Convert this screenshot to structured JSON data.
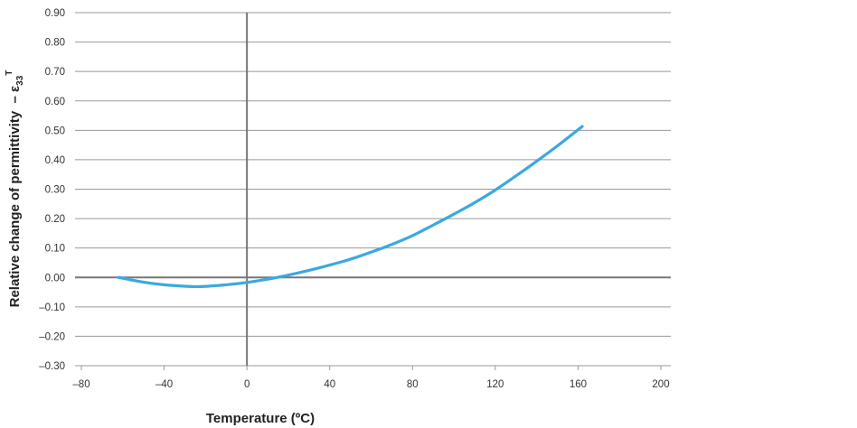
{
  "chart_data": {
    "type": "line",
    "xlabel": "Temperature (ºC)",
    "ylabel": {
      "text": "Relative change of permittivity  – ε",
      "subscript": "33",
      "superscript": "T"
    },
    "xlim": [
      -80,
      200
    ],
    "ylim": [
      -0.3,
      0.9
    ],
    "x_ticks": [
      -80,
      -40,
      0,
      40,
      80,
      120,
      160,
      200
    ],
    "x_tick_labels": [
      "–80",
      "–40",
      "0",
      "40",
      "80",
      "120",
      "160",
      "200"
    ],
    "y_ticks": [
      0.9,
      0.8,
      0.7,
      0.6,
      0.5,
      0.4,
      0.3,
      0.2,
      0.1,
      0.0,
      -0.1,
      -0.2,
      -0.3
    ],
    "y_tick_labels": [
      "0.90",
      "0.80",
      "0.70",
      "0.60",
      "0.50",
      "0.40",
      "0.30",
      "0.20",
      "0.10",
      "0.00",
      "–0.10",
      "–0.20",
      "–0.30"
    ],
    "grid": "horizontal",
    "series": [
      {
        "color": "#3aa9e0",
        "x": [
          -62,
          -50,
          -40,
          -30,
          -22,
          -10,
          0,
          10,
          20,
          30,
          40,
          50,
          60,
          70,
          80,
          90,
          100,
          110,
          120,
          130,
          140,
          150,
          162
        ],
        "y": [
          0.0,
          -0.016,
          -0.025,
          -0.03,
          -0.031,
          -0.025,
          -0.017,
          -0.006,
          0.008,
          0.024,
          0.042,
          0.062,
          0.086,
          0.112,
          0.142,
          0.178,
          0.215,
          0.254,
          0.297,
          0.345,
          0.395,
          0.447,
          0.513
        ]
      }
    ],
    "zero_line_color": "#777777",
    "grid_color": "#999999"
  }
}
